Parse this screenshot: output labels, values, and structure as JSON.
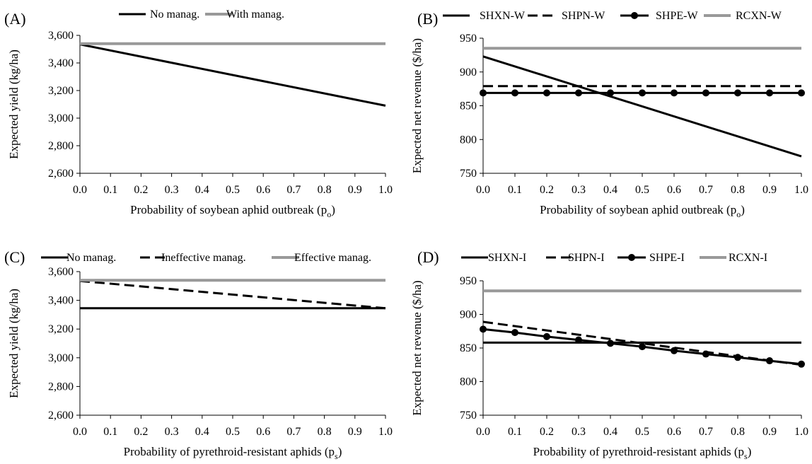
{
  "figure": {
    "colors": {
      "black": "#000000",
      "gray": "#999999"
    }
  },
  "chart_data": [
    {
      "panel": "(A)",
      "type": "line",
      "xlabel": "Probability of soybean aphid outbreak (p",
      "xlabel_sub": "o",
      "xlabel_end": ")",
      "ylabel": "Expected yield (kg/ha)",
      "xlim": [
        0,
        1
      ],
      "ylim": [
        2600,
        3600
      ],
      "xticks": [
        0,
        0.1,
        0.2,
        0.3,
        0.4,
        0.5,
        0.6,
        0.7,
        0.8,
        0.9,
        1
      ],
      "xtick_labels": [
        "0.0",
        "0.1",
        "0.2",
        "0.3",
        "0.4",
        "0.5",
        "0.6",
        "0.7",
        "0.8",
        "0.9",
        "1.0"
      ],
      "yticks": [
        2600,
        2800,
        3000,
        3200,
        3400,
        3600
      ],
      "ytick_labels": [
        "2,600",
        "2,800",
        "3,000",
        "3,200",
        "3,400",
        "3,600"
      ],
      "legend_position": "top",
      "series": [
        {
          "name": "No manag.",
          "color": "#000000",
          "dash": "solid",
          "marker": "none",
          "x": [
            0,
            1
          ],
          "y": [
            3535,
            3090
          ]
        },
        {
          "name": "With manag.",
          "color": "#999999",
          "dash": "solid",
          "marker": "none",
          "x": [
            0,
            1
          ],
          "y": [
            3540,
            3540
          ]
        }
      ]
    },
    {
      "panel": "(B)",
      "type": "line",
      "xlabel": "Probability of soybean aphid outbreak (p",
      "xlabel_sub": "o",
      "xlabel_end": ")",
      "ylabel": "Expected net revenue ($/ha)",
      "xlim": [
        0,
        1
      ],
      "ylim": [
        750,
        950
      ],
      "xticks": [
        0,
        0.1,
        0.2,
        0.3,
        0.4,
        0.5,
        0.6,
        0.7,
        0.8,
        0.9,
        1
      ],
      "xtick_labels": [
        "0.0",
        "0.1",
        "0.2",
        "0.3",
        "0.4",
        "0.5",
        "0.6",
        "0.7",
        "0.8",
        "0.9",
        "1.0"
      ],
      "yticks": [
        750,
        800,
        850,
        900,
        950
      ],
      "ytick_labels": [
        "750",
        "800",
        "850",
        "900",
        "950"
      ],
      "legend_position": "top",
      "series": [
        {
          "name": "SHXN-W",
          "color": "#000000",
          "dash": "solid",
          "marker": "none",
          "x": [
            0,
            1
          ],
          "y": [
            923,
            775
          ]
        },
        {
          "name": "SHPN-W",
          "color": "#000000",
          "dash": "dashed",
          "marker": "none",
          "x": [
            0,
            1
          ],
          "y": [
            879,
            879
          ]
        },
        {
          "name": "SHPE-W",
          "color": "#000000",
          "dash": "solid",
          "marker": "circle",
          "x": [
            0,
            0.1,
            0.2,
            0.3,
            0.4,
            0.5,
            0.6,
            0.7,
            0.8,
            0.9,
            1
          ],
          "y": [
            869,
            869,
            869,
            869,
            869,
            869,
            869,
            869,
            869,
            869,
            869
          ]
        },
        {
          "name": "RCXN-W",
          "color": "#999999",
          "dash": "solid",
          "marker": "none",
          "x": [
            0,
            1
          ],
          "y": [
            935,
            935
          ]
        }
      ]
    },
    {
      "panel": "(C)",
      "type": "line",
      "xlabel": "Probability of pyrethroid-resistant aphids (p",
      "xlabel_sub": "s",
      "xlabel_end": ")",
      "ylabel": "Expected yield (kg/ha)",
      "xlim": [
        0,
        1
      ],
      "ylim": [
        2600,
        3600
      ],
      "xticks": [
        0,
        0.1,
        0.2,
        0.3,
        0.4,
        0.5,
        0.6,
        0.7,
        0.8,
        0.9,
        1
      ],
      "xtick_labels": [
        "0.0",
        "0.1",
        "0.2",
        "0.3",
        "0.4",
        "0.5",
        "0.6",
        "0.7",
        "0.8",
        "0.9",
        "1.0"
      ],
      "yticks": [
        2600,
        2800,
        3000,
        3200,
        3400,
        3600
      ],
      "ytick_labels": [
        "2,600",
        "2,800",
        "3,000",
        "3,200",
        "3,400",
        "3,600"
      ],
      "legend_position": "top",
      "series": [
        {
          "name": "No manag.",
          "color": "#000000",
          "dash": "solid",
          "marker": "none",
          "x": [
            0,
            1
          ],
          "y": [
            3345,
            3345
          ]
        },
        {
          "name": "Ineffective manag.",
          "color": "#000000",
          "dash": "dashed",
          "marker": "none",
          "x": [
            0,
            1
          ],
          "y": [
            3535,
            3345
          ]
        },
        {
          "name": "Effective manag.",
          "color": "#999999",
          "dash": "solid",
          "marker": "none",
          "x": [
            0,
            1
          ],
          "y": [
            3540,
            3540
          ]
        }
      ]
    },
    {
      "panel": "(D)",
      "type": "line",
      "xlabel": "Probability of pyrethroid-resistant aphids (p",
      "xlabel_sub": "s",
      "xlabel_end": ")",
      "ylabel": "Expected net revenue ($/ha)",
      "xlim": [
        0,
        1
      ],
      "ylim": [
        750,
        950
      ],
      "xticks": [
        0,
        0.1,
        0.2,
        0.3,
        0.4,
        0.5,
        0.6,
        0.7,
        0.8,
        0.9,
        1
      ],
      "xtick_labels": [
        "0.0",
        "0.1",
        "0.2",
        "0.3",
        "0.4",
        "0.5",
        "0.6",
        "0.7",
        "0.8",
        "0.9",
        "1.0"
      ],
      "yticks": [
        750,
        800,
        850,
        900,
        950
      ],
      "ytick_labels": [
        "750",
        "800",
        "850",
        "900",
        "950"
      ],
      "legend_position": "top",
      "series": [
        {
          "name": "SHXN-I",
          "color": "#000000",
          "dash": "solid",
          "marker": "none",
          "x": [
            0,
            1
          ],
          "y": [
            858,
            858
          ]
        },
        {
          "name": "SHPN-I",
          "color": "#000000",
          "dash": "dashed",
          "marker": "none",
          "x": [
            0,
            1
          ],
          "y": [
            889,
            825
          ]
        },
        {
          "name": "SHPE-I",
          "color": "#000000",
          "dash": "solid",
          "marker": "circle",
          "x": [
            0,
            0.1,
            0.2,
            0.3,
            0.4,
            0.5,
            0.6,
            0.7,
            0.8,
            0.9,
            1
          ],
          "y": [
            878,
            873,
            867,
            862,
            857,
            852,
            846,
            841,
            836,
            831,
            826
          ]
        },
        {
          "name": "RCXN-I",
          "color": "#999999",
          "dash": "solid",
          "marker": "none",
          "x": [
            0,
            1
          ],
          "y": [
            935,
            935
          ]
        }
      ]
    }
  ]
}
